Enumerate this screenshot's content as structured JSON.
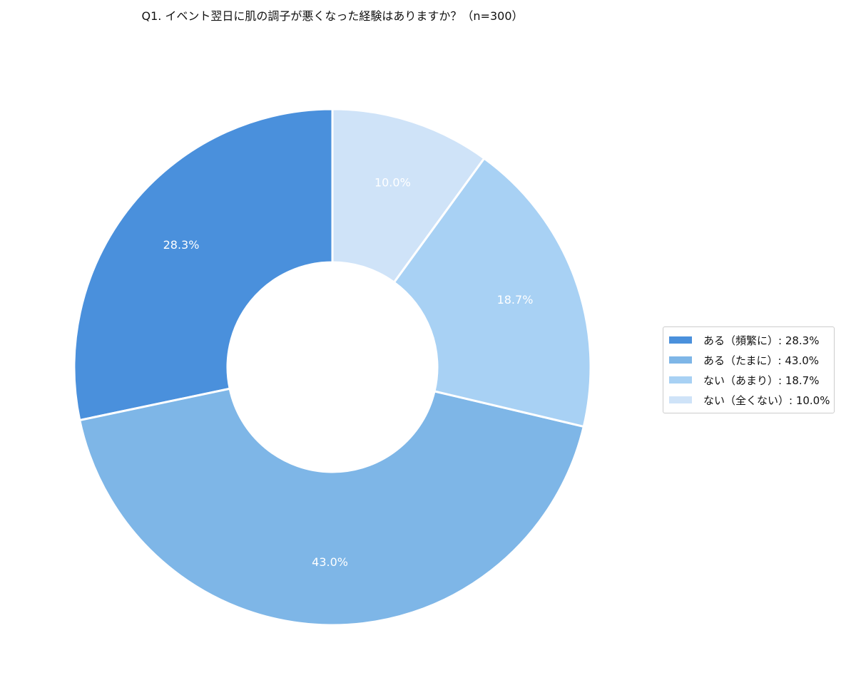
{
  "chart_data": {
    "type": "pie",
    "title": "Q1. イベント翌日に肌の調子が悪くなった経験はありますか？（n=300）",
    "donut": true,
    "start_angle": "top, counterclockwise",
    "categories": [
      "ある（頻繁に）",
      "ある（たまに）",
      "ない（あまり）",
      "ない（全くない）"
    ],
    "values": [
      28.3,
      43.0,
      18.7,
      10.0
    ],
    "data_labels": [
      "28.3%",
      "43.0%",
      "18.7%",
      "10.0%"
    ],
    "legend_labels": [
      "ある（頻繁に）: 28.3%",
      "ある（たまに）: 43.0%",
      "ない（あまり）: 18.7%",
      "ない（全くない）: 10.0%"
    ],
    "colors": [
      "#4a90dc",
      "#7eb6e7",
      "#a8d1f4",
      "#cfe3f8"
    ],
    "legend_position": "right"
  }
}
